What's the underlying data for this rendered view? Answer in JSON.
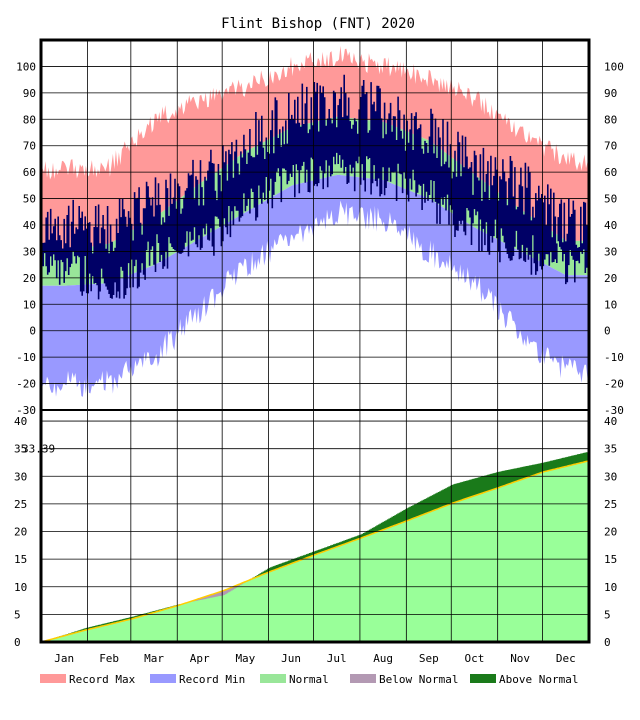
{
  "chart_data": [
    {
      "type": "area",
      "title": "Flint Bishop (FNT) 2020",
      "panel": "temperature",
      "ylim": [
        -30,
        100
      ],
      "y_ticks": [
        100,
        90,
        80,
        70,
        60,
        50,
        40,
        30,
        20,
        10,
        0,
        -10,
        -20,
        -30
      ],
      "categories": [
        "Jan",
        "Feb",
        "Mar",
        "Apr",
        "May",
        "Jun",
        "Jul",
        "Aug",
        "Sep",
        "Oct",
        "Nov",
        "Dec"
      ],
      "grid": true,
      "bands_by_month": {
        "record_max": [
          61,
          62,
          80,
          87,
          92,
          100,
          104,
          100,
          96,
          88,
          76,
          64
        ],
        "normal_high": [
          30,
          33,
          43,
          56,
          68,
          77,
          81,
          79,
          72,
          59,
          46,
          34
        ],
        "normal_low": [
          17,
          18,
          25,
          35,
          45,
          55,
          59,
          57,
          50,
          39,
          30,
          21
        ],
        "record_min": [
          -20,
          -20,
          -10,
          8,
          25,
          35,
          45,
          42,
          30,
          18,
          -2,
          -15
        ]
      },
      "observed_high_by_month": [
        40,
        38,
        50,
        55,
        70,
        82,
        88,
        82,
        75,
        60,
        55,
        40
      ],
      "observed_low_by_month": [
        25,
        15,
        30,
        32,
        45,
        58,
        62,
        58,
        50,
        38,
        30,
        25
      ]
    },
    {
      "type": "area",
      "panel": "precipitation",
      "ylim": [
        0,
        40
      ],
      "y_ticks": [
        40,
        35,
        30,
        25,
        20,
        15,
        10,
        5,
        0
      ],
      "annotations": [
        "33.39",
        "35"
      ],
      "cumulative_normal_month_start": [
        0,
        2.2,
        4.2,
        6.6,
        9.3,
        12.7,
        15.8,
        18.8,
        21.9,
        25.1,
        27.9,
        30.8,
        32.8
      ],
      "cumulative_observed_month_start": [
        0,
        2.6,
        4.6,
        6.8,
        8.5,
        13.5,
        16.5,
        19.5,
        24.2,
        28.5,
        30.8,
        32.5,
        34.5
      ]
    }
  ],
  "legend": [
    {
      "label": "Record Max",
      "color": "#ff9999"
    },
    {
      "label": "Record Min",
      "color": "#9999ff"
    },
    {
      "label": "Normal",
      "color": "#99e699"
    },
    {
      "label": "Below Normal",
      "color": "#b399b3"
    },
    {
      "label": "Above Normal",
      "color": "#1a7a1a"
    }
  ],
  "colors": {
    "record_max": "#ff9999",
    "record_min": "#9999ff",
    "normal": "#99e699",
    "observed": "#000066",
    "precip_normal_fill": "#99ff99",
    "below_normal": "#b399b3",
    "above_normal": "#1a7a1a",
    "normal_line": "#ffcc00"
  }
}
